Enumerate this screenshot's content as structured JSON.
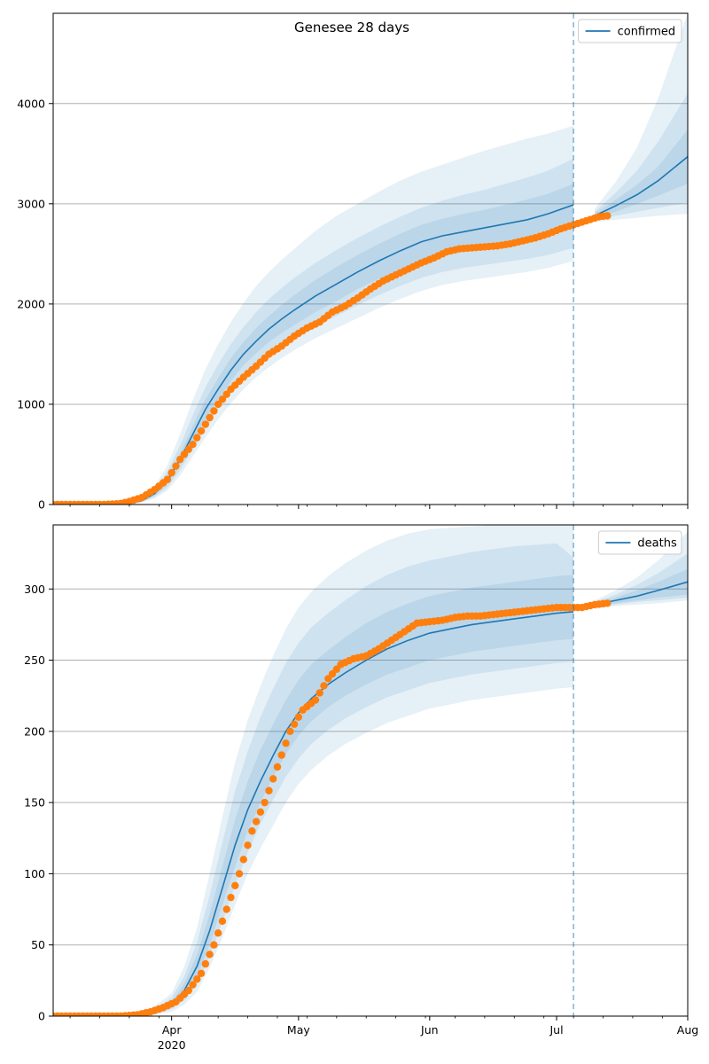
{
  "figure": {
    "title": "Genesee 28 days"
  },
  "colors": {
    "model": "#1f77b4",
    "observed": "#ff7f0e",
    "band": "#1f77b4",
    "grid": "#b0b0b0",
    "vline": "#1f77b4"
  },
  "chart_data": [
    {
      "type": "line",
      "name": "confirmed",
      "legend": {
        "label": "confirmed",
        "placement": "top-right"
      },
      "x_axis": {
        "ticks": [
          {
            "date": "2020-04-01",
            "label": ""
          },
          {
            "date": "2020-05-01",
            "label": ""
          },
          {
            "date": "2020-06-01",
            "label": ""
          },
          {
            "date": "2020-07-01",
            "label": ""
          },
          {
            "date": "2020-08-01",
            "label": ""
          }
        ],
        "xlim": [
          "2020-03-04",
          "2020-08-01"
        ]
      },
      "y_axis": {
        "ylim": [
          0,
          4900
        ],
        "ticks": [
          0,
          1000,
          2000,
          3000,
          4000
        ],
        "grid": true
      },
      "forecast_start": "2020-07-05",
      "model": {
        "dates": [
          "2020-03-04",
          "2020-03-18",
          "2020-03-22",
          "2020-03-25",
          "2020-03-28",
          "2020-03-31",
          "2020-04-03",
          "2020-04-06",
          "2020-04-09",
          "2020-04-12",
          "2020-04-15",
          "2020-04-18",
          "2020-04-21",
          "2020-04-24",
          "2020-04-27",
          "2020-04-30",
          "2020-05-05",
          "2020-05-10",
          "2020-05-15",
          "2020-05-20",
          "2020-05-25",
          "2020-05-30",
          "2020-06-04",
          "2020-06-09",
          "2020-06-14",
          "2020-06-19",
          "2020-06-24",
          "2020-06-29",
          "2020-07-05",
          "2020-07-10",
          "2020-07-15",
          "2020-07-20",
          "2020-07-25",
          "2020-08-01"
        ],
        "values": [
          0,
          0,
          10,
          40,
          110,
          240,
          450,
          700,
          950,
          1150,
          1340,
          1500,
          1630,
          1750,
          1850,
          1940,
          2080,
          2200,
          2320,
          2430,
          2530,
          2620,
          2680,
          2720,
          2760,
          2800,
          2840,
          2900,
          2990,
          2880,
          2980,
          3090,
          3230,
          3470
        ],
        "band_50_low": [
          0,
          0,
          8,
          32,
          90,
          200,
          390,
          620,
          850,
          1050,
          1230,
          1390,
          1510,
          1620,
          1710,
          1790,
          1920,
          2030,
          2150,
          2250,
          2340,
          2430,
          2490,
          2530,
          2570,
          2610,
          2640,
          2700,
          2780,
          2860,
          2920,
          3000,
          3080,
          3200
        ],
        "band_50_high": [
          0,
          0,
          12,
          48,
          130,
          280,
          510,
          780,
          1050,
          1260,
          1460,
          1620,
          1760,
          1880,
          1990,
          2090,
          2240,
          2370,
          2490,
          2600,
          2700,
          2790,
          2850,
          2900,
          2940,
          2990,
          3040,
          3100,
          3200,
          2900,
          3040,
          3190,
          3370,
          3740
        ],
        "band_80_low": [
          0,
          0,
          6,
          26,
          75,
          170,
          340,
          550,
          760,
          950,
          1120,
          1270,
          1390,
          1490,
          1580,
          1660,
          1780,
          1880,
          1990,
          2090,
          2180,
          2260,
          2320,
          2360,
          2390,
          2420,
          2450,
          2490,
          2560,
          2840,
          2880,
          2920,
          2960,
          3010
        ],
        "band_80_high": [
          0,
          0,
          14,
          58,
          155,
          330,
          590,
          890,
          1170,
          1400,
          1600,
          1770,
          1920,
          2050,
          2160,
          2260,
          2410,
          2540,
          2660,
          2770,
          2870,
          2960,
          3030,
          3090,
          3140,
          3200,
          3260,
          3330,
          3450,
          2920,
          3110,
          3330,
          3620,
          4100
        ],
        "band_95_low": [
          0,
          0,
          5,
          20,
          60,
          140,
          290,
          480,
          670,
          850,
          1010,
          1150,
          1270,
          1370,
          1460,
          1540,
          1660,
          1760,
          1860,
          1960,
          2050,
          2130,
          2190,
          2230,
          2260,
          2290,
          2320,
          2360,
          2430,
          2820,
          2840,
          2860,
          2880,
          2900
        ],
        "band_95_high": [
          0,
          0,
          16,
          70,
          185,
          390,
          700,
          1040,
          1350,
          1600,
          1820,
          2010,
          2180,
          2320,
          2440,
          2550,
          2730,
          2880,
          3000,
          3120,
          3230,
          3320,
          3390,
          3460,
          3530,
          3590,
          3650,
          3700,
          3780,
          2950,
          3220,
          3560,
          4050,
          4900
        ]
      },
      "observed": {
        "dates": [
          "2020-03-04",
          "2020-03-10",
          "2020-03-16",
          "2020-03-20",
          "2020-03-22",
          "2020-03-25",
          "2020-03-28",
          "2020-03-31",
          "2020-04-03",
          "2020-04-06",
          "2020-04-09",
          "2020-04-12",
          "2020-04-15",
          "2020-04-18",
          "2020-04-21",
          "2020-04-24",
          "2020-04-27",
          "2020-04-30",
          "2020-05-03",
          "2020-05-06",
          "2020-05-09",
          "2020-05-12",
          "2020-05-15",
          "2020-05-18",
          "2020-05-21",
          "2020-05-24",
          "2020-05-27",
          "2020-05-30",
          "2020-06-02",
          "2020-06-05",
          "2020-06-08",
          "2020-06-11",
          "2020-06-14",
          "2020-06-17",
          "2020-06-20",
          "2020-06-23",
          "2020-06-26",
          "2020-06-29",
          "2020-07-02",
          "2020-07-05",
          "2020-07-08",
          "2020-07-11",
          "2020-07-13"
        ],
        "values": [
          0,
          0,
          0,
          10,
          30,
          70,
          150,
          250,
          450,
          600,
          800,
          1000,
          1150,
          1270,
          1380,
          1500,
          1580,
          1680,
          1760,
          1820,
          1920,
          1980,
          2060,
          2150,
          2230,
          2290,
          2350,
          2410,
          2460,
          2520,
          2550,
          2560,
          2570,
          2580,
          2600,
          2630,
          2660,
          2700,
          2750,
          2790,
          2830,
          2870,
          2880
        ]
      }
    },
    {
      "type": "line",
      "name": "deaths",
      "legend": {
        "label": "deaths",
        "placement": "top-right"
      },
      "x_axis": {
        "ticks": [
          {
            "date": "2020-04-01",
            "label": "Apr"
          },
          {
            "date": "2020-05-01",
            "label": "May"
          },
          {
            "date": "2020-06-01",
            "label": "Jun"
          },
          {
            "date": "2020-07-01",
            "label": "Jul"
          },
          {
            "date": "2020-08-01",
            "label": "Aug"
          }
        ],
        "year_label": "2020",
        "xlim": [
          "2020-03-04",
          "2020-08-01"
        ]
      },
      "y_axis": {
        "ylim": [
          0,
          345
        ],
        "ticks": [
          0,
          50,
          100,
          150,
          200,
          250,
          300
        ],
        "grid": true
      },
      "forecast_start": "2020-07-05",
      "model": {
        "dates": [
          "2020-03-04",
          "2020-03-24",
          "2020-03-28",
          "2020-04-01",
          "2020-04-04",
          "2020-04-07",
          "2020-04-10",
          "2020-04-13",
          "2020-04-16",
          "2020-04-19",
          "2020-04-22",
          "2020-04-25",
          "2020-04-28",
          "2020-05-01",
          "2020-05-04",
          "2020-05-08",
          "2020-05-12",
          "2020-05-17",
          "2020-05-22",
          "2020-05-27",
          "2020-06-01",
          "2020-06-06",
          "2020-06-11",
          "2020-06-16",
          "2020-06-21",
          "2020-06-26",
          "2020-07-01",
          "2020-07-05",
          "2020-07-10",
          "2020-07-15",
          "2020-07-20",
          "2020-07-25",
          "2020-08-01"
        ],
        "values": [
          0,
          0,
          3,
          8,
          18,
          35,
          60,
          90,
          120,
          145,
          165,
          183,
          200,
          213,
          223,
          233,
          241,
          250,
          258,
          264,
          269,
          272,
          275,
          277,
          279,
          281,
          283,
          284,
          289,
          292,
          295,
          299,
          305
        ],
        "band_50_low": [
          0,
          0,
          2,
          6,
          14,
          28,
          50,
          78,
          105,
          130,
          150,
          168,
          184,
          197,
          207,
          217,
          225,
          233,
          240,
          245,
          250,
          253,
          256,
          258,
          260,
          262,
          264,
          265,
          288,
          290,
          292,
          294,
          296
        ],
        "band_50_high": [
          0,
          0,
          4,
          10,
          23,
          43,
          72,
          105,
          138,
          165,
          187,
          205,
          222,
          236,
          247,
          257,
          266,
          276,
          284,
          290,
          295,
          298,
          301,
          303,
          305,
          307,
          309,
          310,
          290,
          294,
          299,
          305,
          314
        ],
        "band_80_low": [
          0,
          0,
          1,
          5,
          11,
          22,
          42,
          66,
          92,
          115,
          135,
          152,
          168,
          181,
          191,
          201,
          209,
          217,
          224,
          229,
          234,
          237,
          240,
          242,
          244,
          246,
          248,
          249,
          287,
          289,
          291,
          292,
          294
        ],
        "band_80_high": [
          0,
          0,
          5,
          13,
          28,
          52,
          85,
          122,
          158,
          186,
          210,
          230,
          248,
          262,
          273,
          283,
          292,
          302,
          310,
          316,
          320,
          323,
          326,
          328,
          330,
          331,
          332,
          322,
          291,
          296,
          303,
          311,
          325
        ],
        "band_95_low": [
          0,
          0,
          1,
          3,
          8,
          17,
          34,
          55,
          78,
          100,
          118,
          134,
          150,
          163,
          173,
          183,
          191,
          199,
          206,
          211,
          216,
          219,
          222,
          224,
          226,
          228,
          230,
          231,
          286,
          288,
          289,
          290,
          292
        ],
        "band_95_high": [
          0,
          0,
          7,
          16,
          35,
          62,
          100,
          140,
          178,
          208,
          232,
          253,
          272,
          287,
          298,
          309,
          318,
          327,
          334,
          339,
          342,
          343,
          344,
          345,
          345,
          345,
          345,
          345,
          292,
          299,
          308,
          320,
          340
        ]
      },
      "observed": {
        "dates": [
          "2020-03-04",
          "2020-03-12",
          "2020-03-20",
          "2020-03-24",
          "2020-03-27",
          "2020-03-30",
          "2020-04-02",
          "2020-04-05",
          "2020-04-08",
          "2020-04-11",
          "2020-04-14",
          "2020-04-17",
          "2020-04-20",
          "2020-04-23",
          "2020-04-26",
          "2020-04-29",
          "2020-05-02",
          "2020-05-05",
          "2020-05-08",
          "2020-05-11",
          "2020-05-14",
          "2020-05-17",
          "2020-05-20",
          "2020-05-23",
          "2020-05-26",
          "2020-05-29",
          "2020-06-01",
          "2020-06-04",
          "2020-06-07",
          "2020-06-10",
          "2020-06-13",
          "2020-06-16",
          "2020-06-19",
          "2020-06-22",
          "2020-06-25",
          "2020-06-28",
          "2020-07-01",
          "2020-07-04",
          "2020-07-07",
          "2020-07-10",
          "2020-07-13"
        ],
        "values": [
          0,
          0,
          0,
          1,
          3,
          6,
          10,
          18,
          30,
          50,
          75,
          100,
          130,
          150,
          175,
          200,
          215,
          222,
          237,
          247,
          251,
          253,
          258,
          264,
          270,
          276,
          277,
          278,
          280,
          281,
          281,
          282,
          283,
          284,
          285,
          286,
          287,
          287,
          287,
          289,
          290
        ]
      }
    }
  ]
}
